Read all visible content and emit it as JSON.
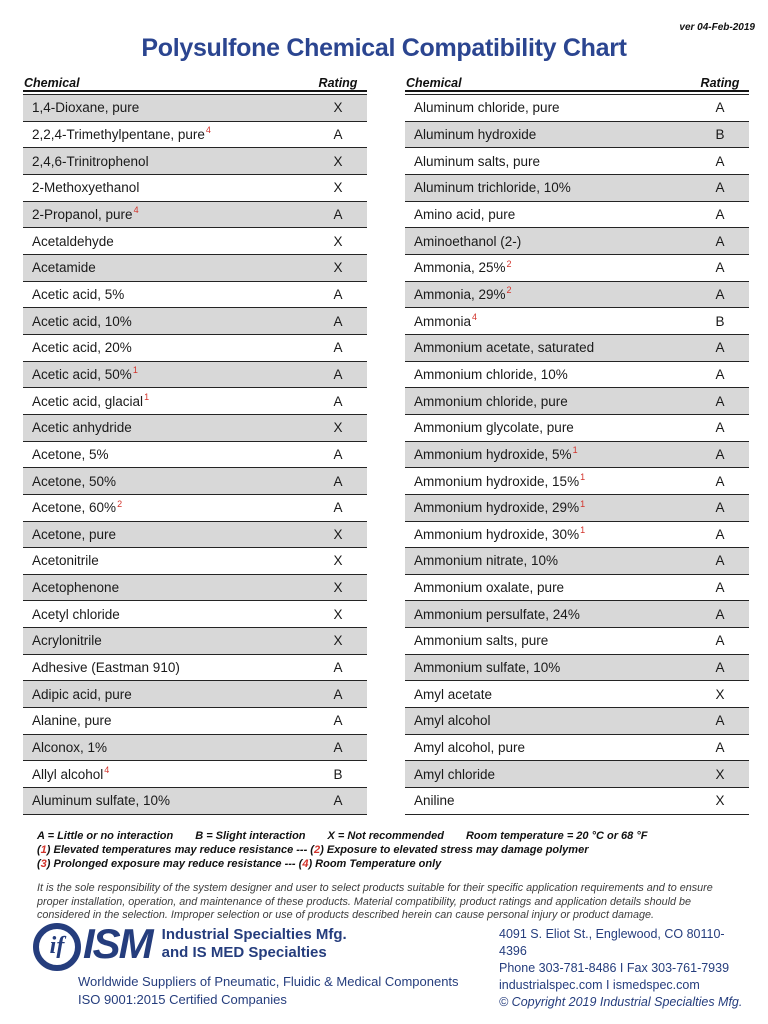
{
  "page": {
    "version": "ver 04-Feb-2019",
    "title": "Polysulfone Chemical Compatibility Chart"
  },
  "colors": {
    "title_navy": "#2b4590",
    "footer_navy": "#253d7d",
    "footnote_red": "#d2332b",
    "row_shade_gray": "#d8d8d8"
  },
  "table": {
    "columns": [
      "Chemical",
      "Rating"
    ],
    "left_rows": [
      {
        "chemical": "1,4-Dioxane, pure",
        "sup": "",
        "rating": "X"
      },
      {
        "chemical": "2,2,4-Trimethylpentane, pure",
        "sup": "4",
        "rating": "A"
      },
      {
        "chemical": "2,4,6-Trinitrophenol",
        "sup": "",
        "rating": "X"
      },
      {
        "chemical": "2-Methoxyethanol",
        "sup": "",
        "rating": "X"
      },
      {
        "chemical": "2-Propanol, pure",
        "sup": "4",
        "rating": "A"
      },
      {
        "chemical": "Acetaldehyde",
        "sup": "",
        "rating": "X"
      },
      {
        "chemical": "Acetamide",
        "sup": "",
        "rating": "X"
      },
      {
        "chemical": "Acetic acid, 5%",
        "sup": "",
        "rating": "A"
      },
      {
        "chemical": "Acetic acid, 10%",
        "sup": "",
        "rating": "A"
      },
      {
        "chemical": "Acetic acid, 20%",
        "sup": "",
        "rating": "A"
      },
      {
        "chemical": "Acetic acid, 50%",
        "sup": "1",
        "rating": "A"
      },
      {
        "chemical": "Acetic acid, glacial",
        "sup": "1",
        "rating": "A"
      },
      {
        "chemical": "Acetic anhydride",
        "sup": "",
        "rating": "X"
      },
      {
        "chemical": "Acetone, 5%",
        "sup": "",
        "rating": "A"
      },
      {
        "chemical": "Acetone, 50%",
        "sup": "",
        "rating": "A"
      },
      {
        "chemical": "Acetone, 60%",
        "sup": "2",
        "rating": "A"
      },
      {
        "chemical": "Acetone, pure",
        "sup": "",
        "rating": "X"
      },
      {
        "chemical": "Acetonitrile",
        "sup": "",
        "rating": "X"
      },
      {
        "chemical": "Acetophenone",
        "sup": "",
        "rating": "X"
      },
      {
        "chemical": "Acetyl chloride",
        "sup": "",
        "rating": "X"
      },
      {
        "chemical": "Acrylonitrile",
        "sup": "",
        "rating": "X"
      },
      {
        "chemical": "Adhesive (Eastman 910)",
        "sup": "",
        "rating": "A"
      },
      {
        "chemical": "Adipic acid, pure",
        "sup": "",
        "rating": "A"
      },
      {
        "chemical": "Alanine, pure",
        "sup": "",
        "rating": "A"
      },
      {
        "chemical": "Alconox, 1%",
        "sup": "",
        "rating": "A"
      },
      {
        "chemical": "Allyl alcohol",
        "sup": "4",
        "rating": "B"
      },
      {
        "chemical": "Aluminum sulfate, 10%",
        "sup": "",
        "rating": "A"
      }
    ],
    "right_rows": [
      {
        "chemical": "Aluminum chloride, pure",
        "sup": "",
        "rating": "A"
      },
      {
        "chemical": "Aluminum hydroxide",
        "sup": "",
        "rating": "B"
      },
      {
        "chemical": "Aluminum salts, pure",
        "sup": "",
        "rating": "A"
      },
      {
        "chemical": "Aluminum trichloride, 10%",
        "sup": "",
        "rating": "A"
      },
      {
        "chemical": "Amino acid, pure",
        "sup": "",
        "rating": "A"
      },
      {
        "chemical": "Aminoethanol (2-)",
        "sup": "",
        "rating": "A"
      },
      {
        "chemical": "Ammonia, 25%",
        "sup": "2",
        "rating": "A"
      },
      {
        "chemical": "Ammonia, 29%",
        "sup": "2",
        "rating": "A"
      },
      {
        "chemical": "Ammonia",
        "sup": "4",
        "rating": "B"
      },
      {
        "chemical": "Ammonium acetate, saturated",
        "sup": "",
        "rating": "A"
      },
      {
        "chemical": "Ammonium chloride, 10%",
        "sup": "",
        "rating": "A"
      },
      {
        "chemical": "Ammonium chloride, pure",
        "sup": "",
        "rating": "A"
      },
      {
        "chemical": "Ammonium glycolate, pure",
        "sup": "",
        "rating": "A"
      },
      {
        "chemical": "Ammonium hydroxide, 5%",
        "sup": "1",
        "rating": "A"
      },
      {
        "chemical": "Ammonium hydroxide, 15%",
        "sup": "1",
        "rating": "A"
      },
      {
        "chemical": "Ammonium hydroxide, 29%",
        "sup": "1",
        "rating": "A"
      },
      {
        "chemical": "Ammonium hydroxide, 30%",
        "sup": "1",
        "rating": "A"
      },
      {
        "chemical": "Ammonium nitrate, 10%",
        "sup": "",
        "rating": "A"
      },
      {
        "chemical": "Ammonium oxalate, pure",
        "sup": "",
        "rating": "A"
      },
      {
        "chemical": "Ammonium persulfate, 24%",
        "sup": "",
        "rating": "A"
      },
      {
        "chemical": "Ammonium salts, pure",
        "sup": "",
        "rating": "A"
      },
      {
        "chemical": "Ammonium sulfate, 10%",
        "sup": "",
        "rating": "A"
      },
      {
        "chemical": "Amyl acetate",
        "sup": "",
        "rating": "X"
      },
      {
        "chemical": "Amyl alcohol",
        "sup": "",
        "rating": "A"
      },
      {
        "chemical": "Amyl alcohol, pure",
        "sup": "",
        "rating": "A"
      },
      {
        "chemical": "Amyl chloride",
        "sup": "",
        "rating": "X"
      },
      {
        "chemical": "Aniline",
        "sup": "",
        "rating": "X"
      }
    ]
  },
  "legend": {
    "items": [
      "A = Little or no interaction",
      "B = Slight interaction",
      "X = Not recommended",
      "Room temperature = 20 °C or 68 °F"
    ]
  },
  "footnote_lines": [
    {
      "segments": [
        {
          "text": "(",
          "red": false
        },
        {
          "text": "1",
          "red": true
        },
        {
          "text": ") Elevated temperatures may reduce resistance --- (",
          "red": false
        },
        {
          "text": "2",
          "red": true
        },
        {
          "text": ") Exposure to elevated stress may damage polymer",
          "red": false
        }
      ]
    },
    {
      "segments": [
        {
          "text": "(",
          "red": false
        },
        {
          "text": "3",
          "red": true
        },
        {
          "text": ") Prolonged exposure may reduce resistance --- (",
          "red": false
        },
        {
          "text": "4",
          "red": true
        },
        {
          "text": ") Room Temperature only",
          "red": false
        }
      ]
    }
  ],
  "disclaimer": "It is the sole responsibility of the system designer and user to select products suitable for their specific application requirements and to ensure proper installation, operation, and maintenance of these products. Material compatibility, product ratings and application details should be considered in the selection. Improper selection or use of products described herein can cause personal injury or product damage.",
  "footer": {
    "logo_if": "if",
    "logo_text": "ISM",
    "company_line1": "Industrial Specialties Mfg.",
    "company_line2": "and IS MED Specialties",
    "tagline": "Worldwide Suppliers of Pneumatic, Fluidic & Medical Components",
    "iso": "ISO 9001:2015 Certified Companies",
    "address": "4091  S. Eliot St., Englewood, CO 80110-4396",
    "phone_fax": "Phone  303-781-8486 I Fax 303-761-7939",
    "websites": "industrialspec.com  I ismedspec.com",
    "copyright": "© Copyright 2019 Industrial Specialties Mfg."
  }
}
